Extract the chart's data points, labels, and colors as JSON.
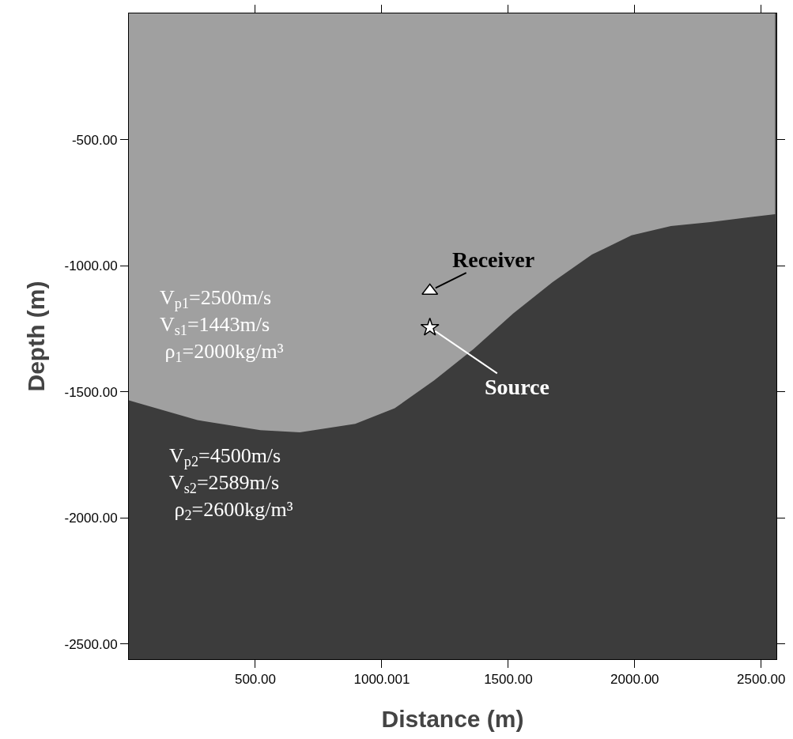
{
  "chart_data": {
    "type": "area",
    "xlabel": "Distance (m)",
    "ylabel": "Depth (m)",
    "x": [
      0,
      271,
      520,
      676,
      895,
      1051,
      1207,
      1363,
      1519,
      1675,
      1831,
      1987,
      2143,
      2299,
      2455,
      2555
    ],
    "series": [
      {
        "color": "#a0a0a0",
        "values": [
          -1534,
          -1612,
          -1652,
          -1661,
          -1627,
          -1565,
          -1455,
          -1330,
          -1190,
          -1065,
          -956,
          -880,
          -843,
          -827,
          -808,
          -796
        ]
      },
      {
        "type": "scatter",
        "marker": "triangle",
        "color": "#ffffff",
        "x": [
          1190
        ],
        "values": [
          -1100
        ]
      },
      {
        "type": "scatter",
        "marker": "star",
        "color": "#ffffff",
        "x": [
          1190
        ],
        "values": [
          -1245
        ]
      }
    ],
    "xlim": [
      0,
      2560
    ],
    "ylim": [
      -2560,
      0
    ],
    "xticks": [
      {
        "value": 500,
        "label": "500.00"
      },
      {
        "value": 1000.001,
        "label": "1000.001"
      },
      {
        "value": 1500,
        "label": "1500.00"
      },
      {
        "value": 2000,
        "label": "2000.00"
      },
      {
        "value": 2500,
        "label": "2500.00"
      }
    ],
    "yticks": [
      {
        "value": -2500,
        "label": "-2500.00"
      },
      {
        "value": -2000,
        "label": "-2000.00"
      },
      {
        "value": -1500,
        "label": "-1500.00"
      },
      {
        "value": -1000,
        "label": "-1000.00"
      },
      {
        "value": -500,
        "label": "-500.00"
      }
    ],
    "bands": [
      {
        "axis": "y",
        "from": -2560,
        "to": 0,
        "color": "#3c3c3c"
      }
    ],
    "grid": false,
    "annotations": [
      {
        "text": "Receiver",
        "x": 1190,
        "y": -1100
      },
      {
        "text": "Source",
        "x": 1190,
        "y": -1245
      },
      "V$_{p1}$=2500m/s\nV$_{s1}$=1443m/s\n ρ$_{1}$=2000kg/m³",
      "V$_{p2}$=4500m/s\nV$_{s2}$=2589m/s\n ρ$_{2}$=2600kg/m³"
    ]
  }
}
